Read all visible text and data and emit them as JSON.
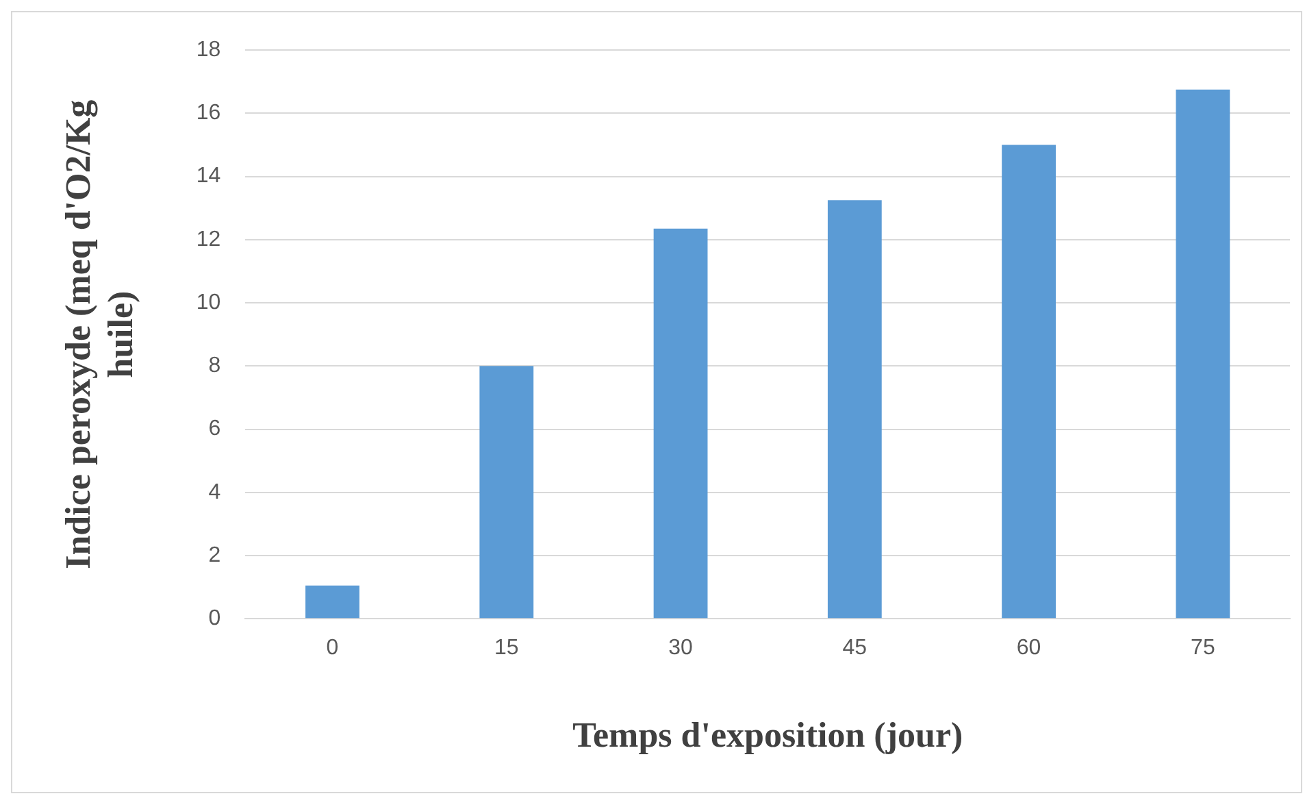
{
  "chart_data": {
    "type": "bar",
    "xlabel": "Temps d'exposition (jour)",
    "ylabel": "Indice peroxyde (meq d'O2/Kg huile)",
    "categories": [
      "0",
      "15",
      "30",
      "45",
      "60",
      "75"
    ],
    "values": [
      1.05,
      8,
      12.35,
      13.25,
      15,
      16.75
    ],
    "color": "#5b9bd5",
    "ylim": [
      0,
      18
    ],
    "yticks": [
      0,
      2,
      4,
      6,
      8,
      10,
      12,
      14,
      16,
      18
    ],
    "grid": "y",
    "legend": false
  }
}
